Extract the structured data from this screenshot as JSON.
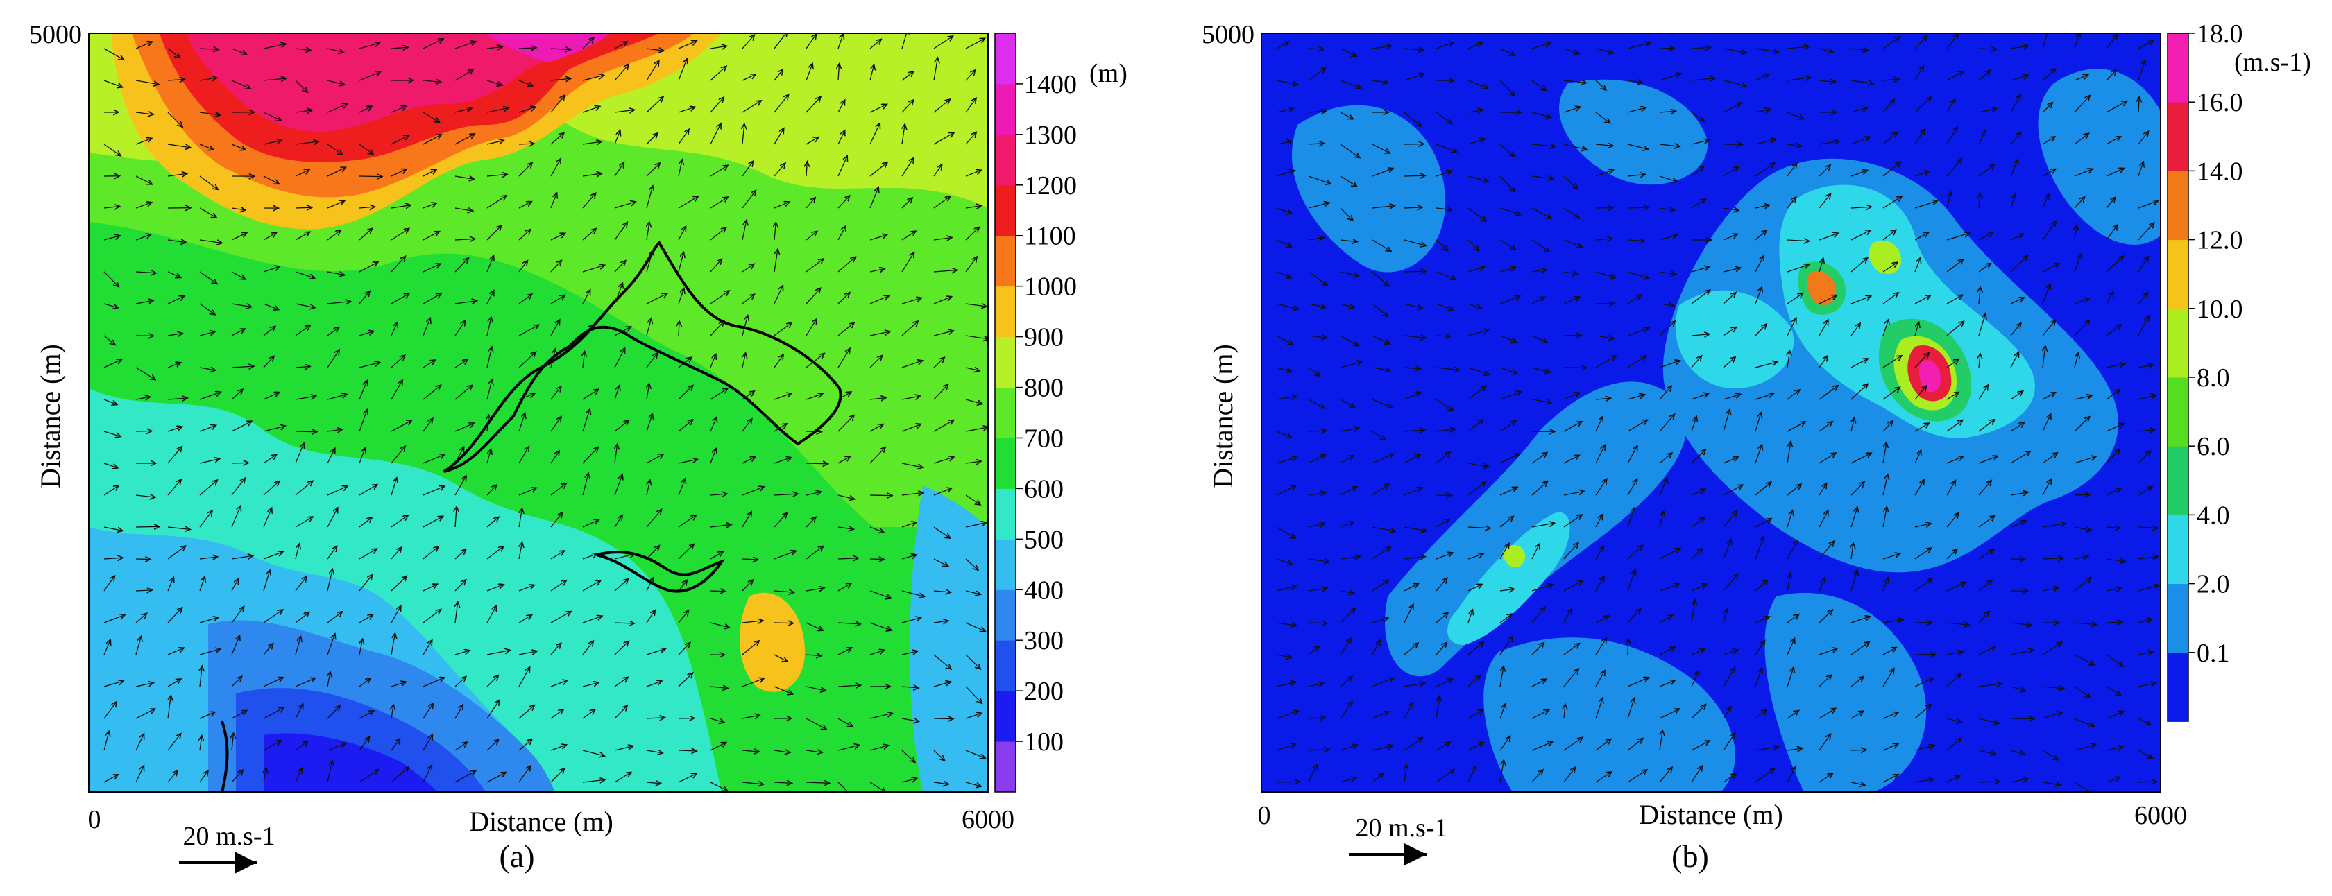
{
  "chart_data": [
    {
      "type": "heatmap",
      "panel_label": "(a)",
      "xlabel": "Distance (m)",
      "ylabel": "Distance (m)",
      "xlim": [
        0,
        6000
      ],
      "ylim": [
        0,
        5000
      ],
      "x_tick_labels": [
        "0",
        "6000"
      ],
      "y_tick_labels": [
        "5000"
      ],
      "colorbar_unit": "(m)",
      "colorbar_levels": [
        100,
        200,
        300,
        400,
        500,
        600,
        700,
        800,
        900,
        1000,
        1100,
        1200,
        1300,
        1400
      ],
      "colorbar_tick_labels": [
        "100",
        "200",
        "300",
        "400",
        "500",
        "600",
        "700",
        "800",
        "900",
        "1000",
        "1100",
        "1200",
        "1300",
        "1400"
      ],
      "colorbar_colors": [
        "#8a3cf0",
        "#1b1bf2",
        "#2050ee",
        "#2f88ee",
        "#35bcf0",
        "#33e8c6",
        "#22dd33",
        "#5ee82a",
        "#b8f028",
        "#f8c21c",
        "#f8771a",
        "#ee1e1e",
        "#f01a6a",
        "#ee1ab5",
        "#dd2ef0"
      ],
      "vector_reference_label": "20 m.s-1",
      "vector_reference_value": 20,
      "field": "terrain elevation (m) with wind vectors and fire perimeter contours"
    },
    {
      "type": "heatmap",
      "panel_label": "(b)",
      "xlabel": "Distance (m)",
      "ylabel": "Distance (m)",
      "xlim": [
        0,
        6000
      ],
      "ylim": [
        0,
        5000
      ],
      "x_tick_labels": [
        "0",
        "6000"
      ],
      "y_tick_labels": [
        "5000"
      ],
      "colorbar_unit": "(m.s-1)",
      "colorbar_levels": [
        0.1,
        2.0,
        4.0,
        6.0,
        8.0,
        10.0,
        12.0,
        14.0,
        16.0,
        18.0
      ],
      "colorbar_tick_labels": [
        "0.1",
        "2.0",
        "4.0",
        "6.0",
        "8.0",
        "10.0",
        "12.0",
        "14.0",
        "16.0",
        "18.0"
      ],
      "colorbar_colors": [
        "#0a1ae8",
        "#1b8ee8",
        "#2fd8e8",
        "#22cc66",
        "#55dd22",
        "#aaee22",
        "#f5c419",
        "#f07a19",
        "#e81e3c",
        "#f21fb0"
      ],
      "vector_reference_label": "20 m.s-1",
      "vector_reference_value": 20,
      "field": "wind speed (m/s) with wind vectors"
    }
  ]
}
